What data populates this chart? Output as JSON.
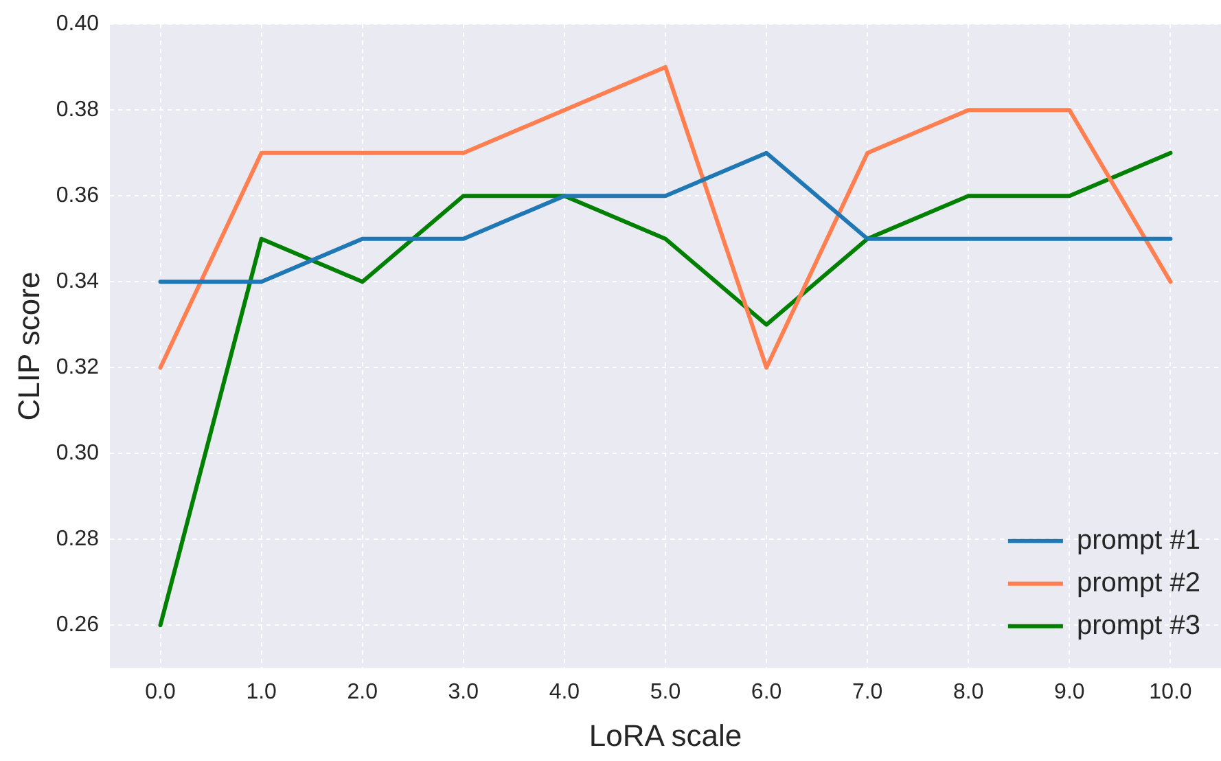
{
  "chart_data": {
    "type": "line",
    "xlabel": "LoRA scale",
    "ylabel": "CLIP score",
    "categories": [
      "0.0",
      "1.0",
      "2.0",
      "3.0",
      "4.0",
      "5.0",
      "6.0",
      "7.0",
      "8.0",
      "9.0",
      "10.0"
    ],
    "series": [
      {
        "name": "prompt #1",
        "color": "#1f77b4",
        "values": [
          0.34,
          0.34,
          0.35,
          0.35,
          0.36,
          0.36,
          0.37,
          0.35,
          0.35,
          0.35,
          0.35
        ]
      },
      {
        "name": "prompt #2",
        "color": "#ff7f50",
        "values": [
          0.32,
          0.37,
          0.37,
          0.37,
          0.38,
          0.39,
          0.32,
          0.37,
          0.38,
          0.38,
          0.34
        ]
      },
      {
        "name": "prompt #3",
        "color": "#008000",
        "values": [
          0.26,
          0.35,
          0.34,
          0.36,
          0.36,
          0.35,
          0.33,
          0.35,
          0.36,
          0.36,
          0.37
        ]
      }
    ],
    "ylim": [
      0.25,
      0.4
    ],
    "yticks": [
      {
        "value": 0.26,
        "label": "0.26"
      },
      {
        "value": 0.28,
        "label": "0.28"
      },
      {
        "value": 0.3,
        "label": "0.30"
      },
      {
        "value": 0.32,
        "label": "0.32"
      },
      {
        "value": 0.34,
        "label": "0.34"
      },
      {
        "value": 0.36,
        "label": "0.36"
      },
      {
        "value": 0.38,
        "label": "0.38"
      },
      {
        "value": 0.4,
        "label": "0.40"
      }
    ],
    "grid": true,
    "legend": "bottom right",
    "marker": "none",
    "line_style": "solid"
  }
}
